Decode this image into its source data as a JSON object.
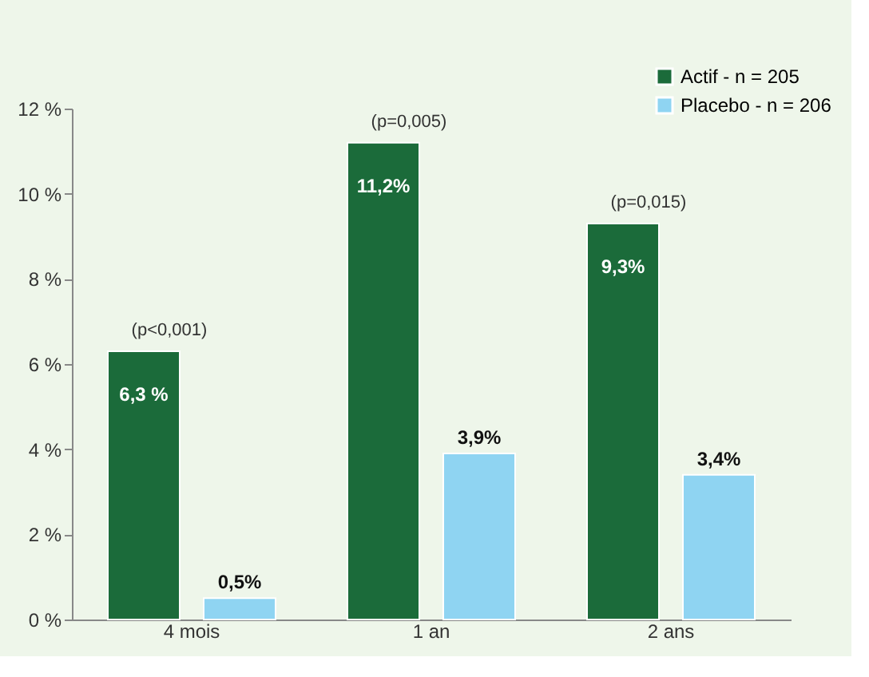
{
  "chart_data": {
    "type": "bar",
    "categories": [
      "4 mois",
      "1 an",
      "2 ans"
    ],
    "series": [
      {
        "name": "Actif - n = 205",
        "color": "#1b6b3a",
        "values": [
          6.3,
          11.2,
          9.3
        ],
        "value_labels": [
          "6,3 %",
          "11,2%",
          "9,3%"
        ]
      },
      {
        "name": "Placebo - n = 206",
        "color": "#8fd4f2",
        "values": [
          0.5,
          3.9,
          3.4
        ],
        "value_labels": [
          "0,5%",
          "3,9%",
          "3,4%"
        ]
      }
    ],
    "ylim": [
      0,
      12
    ],
    "yticks": [
      {
        "value": 0,
        "label": "0 %"
      },
      {
        "value": 2,
        "label": "2 %"
      },
      {
        "value": 4,
        "label": "4 %"
      },
      {
        "value": 6,
        "label": "6 %"
      },
      {
        "value": 8,
        "label": "8 %"
      },
      {
        "value": 10,
        "label": "10 %"
      },
      {
        "value": 12,
        "label": "12 %"
      }
    ],
    "annotations": [
      "(p<0,001)",
      "(p=0,005)",
      "(p=0,015)"
    ],
    "legend": "top right",
    "grid": false
  }
}
